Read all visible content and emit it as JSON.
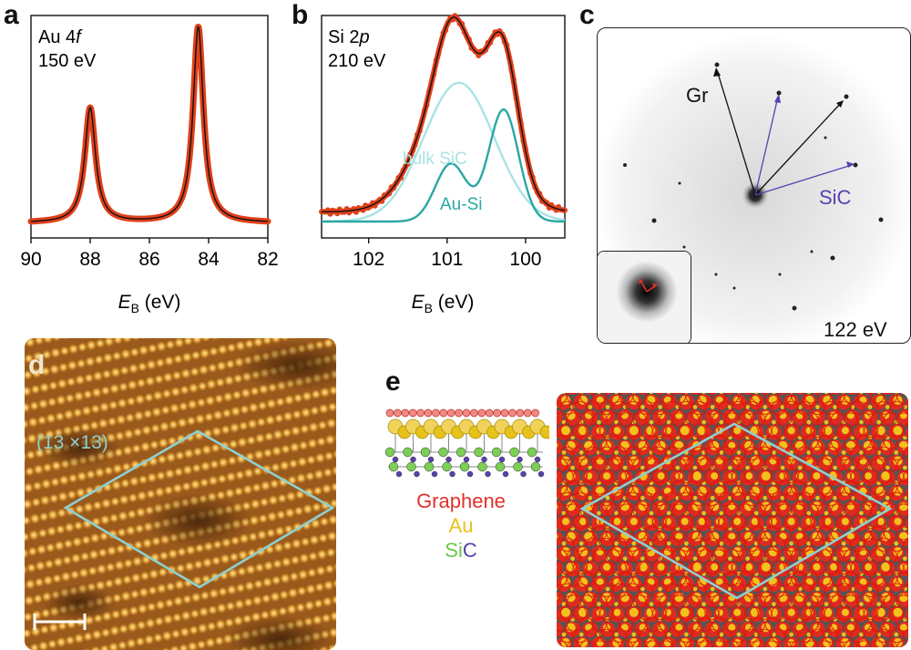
{
  "panels": {
    "a": {
      "letter": "a"
    },
    "b": {
      "letter": "b"
    },
    "c": {
      "letter": "c",
      "energy": "122 eV",
      "label_gr": "Gr",
      "label_sic": "SiC"
    },
    "d": {
      "letter": "d",
      "cell_label": "(13 ×13)"
    },
    "e": {
      "letter": "e",
      "legend": {
        "graphene": "Graphene",
        "au": "Au",
        "si": "Si",
        "c": "C"
      }
    }
  },
  "colors": {
    "data": "#e0401a",
    "fit": "#111111",
    "bulk": "#a8e3e3",
    "ausi": "#2aa7a3",
    "graphene": "#e0322a",
    "au": "#e6c21a",
    "si": "#6cc84a",
    "c": "#5a3fb0",
    "cell": "#8fd0d0"
  },
  "chart_data": [
    {
      "type": "line",
      "panel": "a",
      "title": "",
      "annotation": [
        "Au 4",
        "f",
        "150 eV"
      ],
      "xlabel": {
        "symbol": "E",
        "subscript": "B",
        "unit": " (eV)"
      },
      "ylabel": "",
      "xlim": [
        90,
        82
      ],
      "ylim": [
        0,
        1.05
      ],
      "xticks": [
        90,
        88,
        86,
        84,
        82
      ],
      "series": [
        {
          "name": "data",
          "peaks": [
            {
              "center": 88.0,
              "height": 0.58,
              "width": 0.22
            },
            {
              "center": 84.35,
              "height": 0.99,
              "width": 0.21
            }
          ],
          "baseline": 0.02
        },
        {
          "name": "fit",
          "peaks": [
            {
              "center": 88.0,
              "height": 0.58,
              "width": 0.22
            },
            {
              "center": 84.35,
              "height": 0.99,
              "width": 0.21
            }
          ],
          "baseline": 0.02
        }
      ]
    },
    {
      "type": "line",
      "panel": "b",
      "title": "",
      "annotation": [
        "Si 2",
        "p",
        "210 eV"
      ],
      "xlabel": {
        "symbol": "E",
        "subscript": "B",
        "unit": " (eV)"
      },
      "ylabel": "",
      "xlim": [
        102.6,
        99.5
      ],
      "ylim": [
        0,
        1.05
      ],
      "xticks": [
        102,
        101,
        100
      ],
      "series": [
        {
          "name": "bulk SiC",
          "components": [
            {
              "center": 100.85,
              "height": 0.72,
              "sigma": 0.45
            }
          ]
        },
        {
          "name": "Au-Si",
          "components": [
            {
              "center": 100.95,
              "height": 0.3,
              "sigma": 0.2
            },
            {
              "center": 100.28,
              "height": 0.58,
              "sigma": 0.19
            }
          ]
        },
        {
          "name": "data",
          "components": [
            {
              "center": 100.85,
              "height": 0.72,
              "sigma": 0.45
            },
            {
              "center": 100.95,
              "height": 0.3,
              "sigma": 0.2
            },
            {
              "center": 100.28,
              "height": 0.58,
              "sigma": 0.19
            }
          ],
          "baseline": 0.05
        },
        {
          "name": "fit",
          "components": [
            {
              "center": 100.85,
              "height": 0.72,
              "sigma": 0.45
            },
            {
              "center": 100.95,
              "height": 0.3,
              "sigma": 0.2
            },
            {
              "center": 100.28,
              "height": 0.58,
              "sigma": 0.19
            }
          ],
          "baseline": 0.05
        }
      ],
      "labels": {
        "bulk": "bulk SiC",
        "ausi": "Au-Si"
      }
    }
  ]
}
